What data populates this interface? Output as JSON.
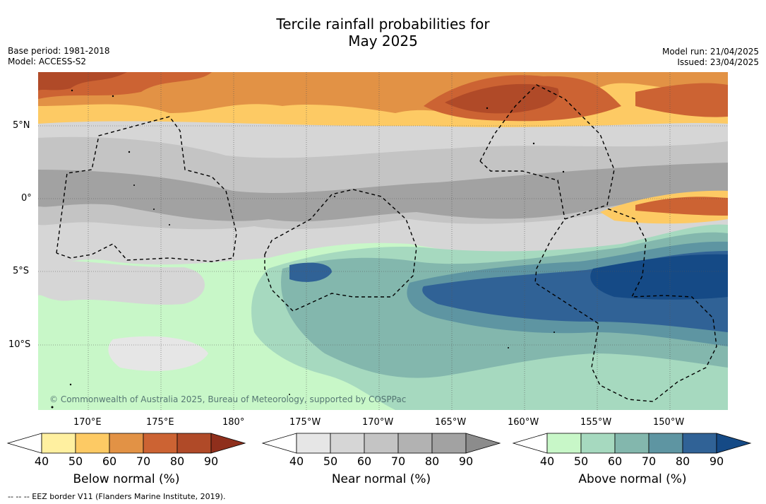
{
  "title_line1": "Tercile rainfall probabilities for",
  "title_line2": "May 2025",
  "base_period": "Base period: 1981-2018",
  "model": "Model: ACCESS-S2",
  "model_run": "Model run: 21/04/2025",
  "issued": "Issued: 23/04/2025",
  "lat_labels": [
    "5°N",
    "0°",
    "5°S",
    "10°S"
  ],
  "lon_labels": [
    "170°E",
    "175°E",
    "180°",
    "175°W",
    "170°W",
    "165°W",
    "160°W",
    "155°W",
    "150°W"
  ],
  "credit": "© Commonwealth of Australia 2025, Bureau of Meteorology, supported by COSPPac",
  "footnote": "--  --  -- EEZ border V11 (Flanders Marine Institute, 2019).",
  "colorbars": {
    "below": {
      "title": "Below normal (%)",
      "ticks": [
        "40",
        "50",
        "60",
        "70",
        "80",
        "90"
      ],
      "colors": [
        "#fff0a0",
        "#fdca64",
        "#e29245",
        "#cc6333",
        "#b04a28",
        "#8f2f1c"
      ]
    },
    "near": {
      "title": "Near normal (%)",
      "ticks": [
        "40",
        "50",
        "60",
        "70",
        "80",
        "90"
      ],
      "colors": [
        "#e6e6e6",
        "#d6d6d6",
        "#c4c4c4",
        "#b2b2b2",
        "#a2a2a2",
        "#8c8c8c"
      ]
    },
    "above": {
      "title": "Above normal (%)",
      "ticks": [
        "40",
        "50",
        "60",
        "70",
        "80",
        "90"
      ],
      "colors": [
        "#c8f7c8",
        "#a6d9bf",
        "#83b7ad",
        "#5e95a2",
        "#306296",
        "#154a86"
      ]
    }
  }
}
